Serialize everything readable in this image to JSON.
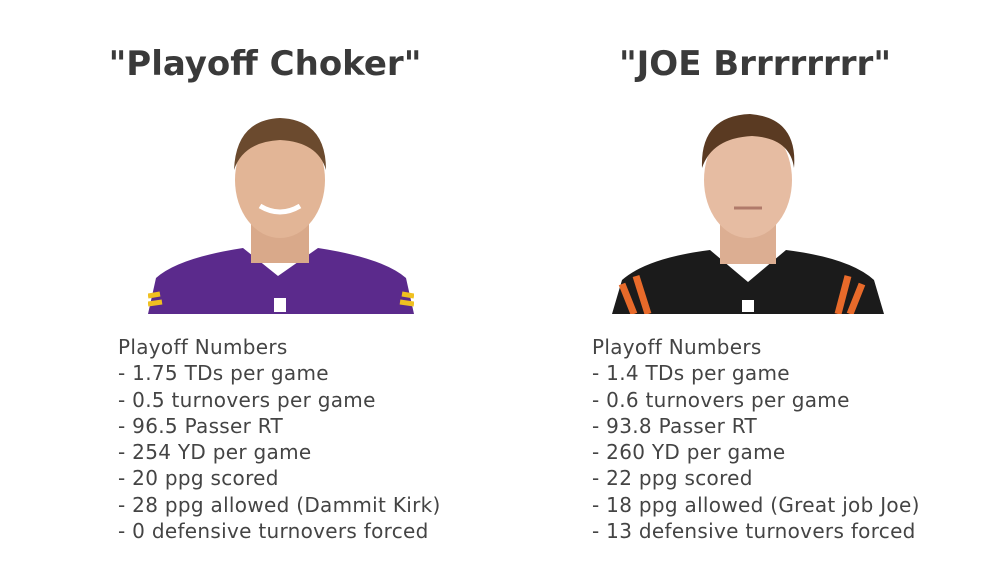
{
  "columns": [
    {
      "title": "\"Playoff Choker\"",
      "heading": "Playoff Numbers",
      "items": [
        "- 1.75 TDs per game",
        "- 0.5 turnovers per game",
        "- 96.5 Passer RT",
        "- 254 YD per game",
        "- 20 ppg scored",
        "- 28 ppg allowed (Dammit Kirk)",
        "- 0 defensive turnovers forced"
      ]
    },
    {
      "title": "\"JOE Brrrrrrrr\"",
      "heading": "Playoff Numbers",
      "items": [
        "- 1.4 TDs per game",
        "- 0.6 turnovers per game",
        "- 93.8 Passer RT",
        "- 260 YD per game",
        "- 22 ppg scored",
        "- 18 ppg allowed (Great job Joe)",
        "- 13 defensive turnovers forced"
      ]
    }
  ]
}
